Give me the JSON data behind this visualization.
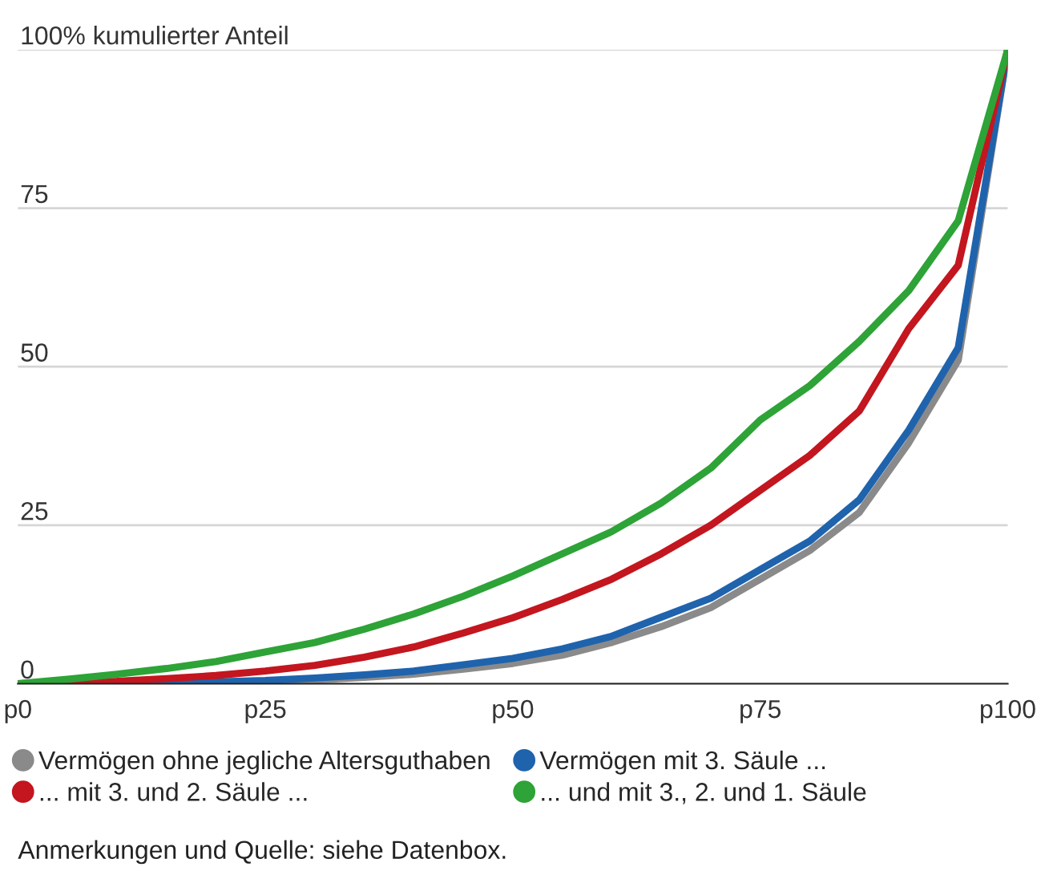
{
  "chart_data": {
    "type": "line",
    "categories": [
      "p0",
      null,
      null,
      null,
      null,
      "p25",
      null,
      null,
      null,
      null,
      "p50",
      null,
      null,
      null,
      null,
      "p75",
      null,
      null,
      null,
      null,
      "p100"
    ],
    "series": [
      {
        "name": "Vermögen ohne jegliche Altersguthaben",
        "color": "#8a8a8a",
        "values": [
          0,
          0,
          0,
          0.1,
          0.2,
          0.3,
          0.6,
          1,
          1.5,
          2.3,
          3.2,
          4.5,
          6.5,
          9,
          12,
          16.5,
          21,
          27,
          38,
          51,
          100
        ]
      },
      {
        "name": "Vermögen mit 3. Säule ...",
        "color": "#1f63ad",
        "values": [
          null,
          null,
          0.1,
          0.2,
          0.3,
          0.5,
          0.9,
          1.4,
          2,
          3,
          4,
          5.5,
          7.5,
          10.5,
          13.5,
          18,
          22.5,
          29,
          40,
          53,
          100
        ]
      },
      {
        "name": "... mit 3. und 2. Säule ...",
        "color": "#c3161f",
        "values": [
          0,
          0.2,
          0.4,
          0.8,
          1.3,
          2,
          2.9,
          4.2,
          5.8,
          8,
          10.4,
          13.3,
          16.5,
          20.5,
          25,
          30.5,
          36,
          43,
          56,
          66,
          100
        ]
      },
      {
        "name": "... und mit 3., 2. und 1. Säule",
        "color": "#2ea337",
        "values": [
          0,
          0.7,
          1.5,
          2.4,
          3.5,
          5,
          6.5,
          8.6,
          11,
          13.8,
          17,
          20.5,
          24,
          28.5,
          34,
          41.6,
          47,
          54,
          62,
          73,
          100
        ]
      }
    ],
    "ylim": [
      0,
      100
    ],
    "yticks": [
      0,
      25,
      50,
      75,
      {
        "value": 100,
        "label": "100% kumulierter Anteil"
      }
    ],
    "grid": "y",
    "legend": "bottom",
    "marker": "none",
    "line_style": "solid",
    "annotations": [
      "Anmerkungen und Quelle: siehe Datenbox."
    ]
  }
}
